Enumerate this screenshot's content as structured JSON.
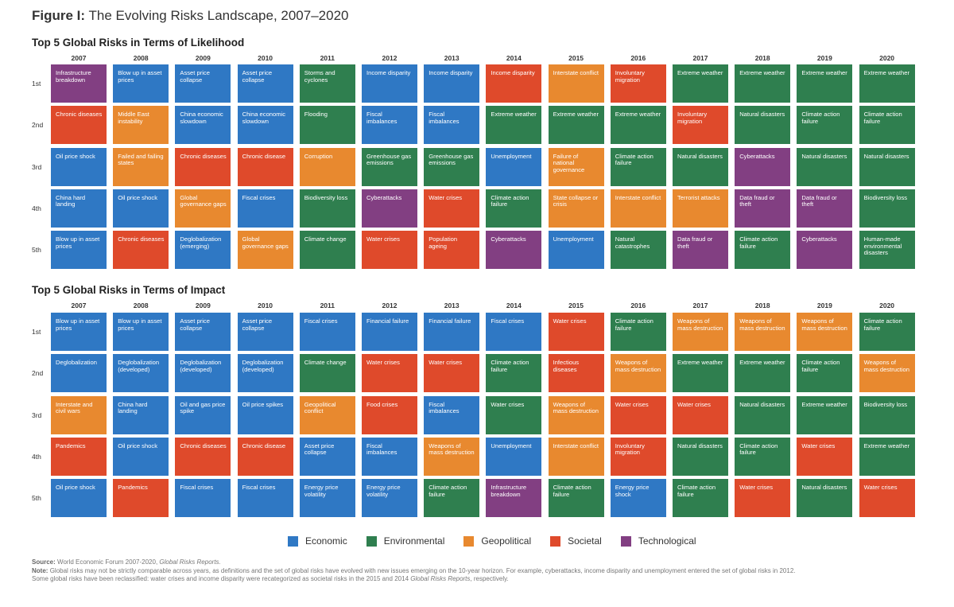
{
  "figure_title_lead": "Figure I:",
  "figure_title_rest": "The Evolving Risks Landscape, 2007–2020",
  "categories_colors": {
    "Economic": "#2f78c4",
    "Environmental": "#2f7f4f",
    "Geopolitical": "#e8892f",
    "Societal": "#df4a2b",
    "Technological": "#823f82"
  },
  "chart_data": [
    {
      "type": "table",
      "title": "Top 5 Global Risks in Terms of Likelihood",
      "years": [
        "2007",
        "2008",
        "2009",
        "2010",
        "2011",
        "2012",
        "2013",
        "2014",
        "2015",
        "2016",
        "2017",
        "2018",
        "2019",
        "2020"
      ],
      "ranks": [
        "1st",
        "2nd",
        "3rd",
        "4th",
        "5th"
      ],
      "cells": [
        [
          [
            "Infrastructure breakdown",
            "Technological"
          ],
          [
            "Blow up in asset prices",
            "Economic"
          ],
          [
            "Asset price collapse",
            "Economic"
          ],
          [
            "Asset price collapse",
            "Economic"
          ],
          [
            "Storms and cyclones",
            "Environmental"
          ],
          [
            "Income disparity",
            "Economic"
          ],
          [
            "Income disparity",
            "Economic"
          ],
          [
            "Income disparity",
            "Societal"
          ],
          [
            "Interstate conflict",
            "Geopolitical"
          ],
          [
            "Involuntary migration",
            "Societal"
          ],
          [
            "Extreme weather",
            "Environmental"
          ],
          [
            "Extreme weather",
            "Environmental"
          ],
          [
            "Extreme weather",
            "Environmental"
          ],
          [
            "Extreme weather",
            "Environmental"
          ]
        ],
        [
          [
            "Chronic diseases",
            "Societal"
          ],
          [
            "Middle East instability",
            "Geopolitical"
          ],
          [
            "China economic slowdown",
            "Economic"
          ],
          [
            "China economic slowdown",
            "Economic"
          ],
          [
            "Flooding",
            "Environmental"
          ],
          [
            "Fiscal imbalances",
            "Economic"
          ],
          [
            "Fiscal imbalances",
            "Economic"
          ],
          [
            "Extreme weather",
            "Environmental"
          ],
          [
            "Extreme weather",
            "Environmental"
          ],
          [
            "Extreme weather",
            "Environmental"
          ],
          [
            "Involuntary migration",
            "Societal"
          ],
          [
            "Natural disasters",
            "Environmental"
          ],
          [
            "Climate action failure",
            "Environmental"
          ],
          [
            "Climate action failure",
            "Environmental"
          ]
        ],
        [
          [
            "Oil price shock",
            "Economic"
          ],
          [
            "Failed and failing states",
            "Geopolitical"
          ],
          [
            "Chronic diseases",
            "Societal"
          ],
          [
            "Chronic disease",
            "Societal"
          ],
          [
            "Corruption",
            "Geopolitical"
          ],
          [
            "Greenhouse gas emissions",
            "Environmental"
          ],
          [
            "Greenhouse gas emissions",
            "Environmental"
          ],
          [
            "Unemployment",
            "Economic"
          ],
          [
            "Failure of national governance",
            "Geopolitical"
          ],
          [
            "Climate action failure",
            "Environmental"
          ],
          [
            "Natural disasters",
            "Environmental"
          ],
          [
            "Cyberattacks",
            "Technological"
          ],
          [
            "Natural disasters",
            "Environmental"
          ],
          [
            "Natural disasters",
            "Environmental"
          ]
        ],
        [
          [
            "China hard landing",
            "Economic"
          ],
          [
            "Oil price shock",
            "Economic"
          ],
          [
            "Global governance gaps",
            "Geopolitical"
          ],
          [
            "Fiscal crises",
            "Economic"
          ],
          [
            "Biodiversity loss",
            "Environmental"
          ],
          [
            "Cyberattacks",
            "Technological"
          ],
          [
            "Water crises",
            "Societal"
          ],
          [
            "Climate action failure",
            "Environmental"
          ],
          [
            "State collapse or crisis",
            "Geopolitical"
          ],
          [
            "Interstate conflict",
            "Geopolitical"
          ],
          [
            "Terrorist attacks",
            "Geopolitical"
          ],
          [
            "Data fraud or theft",
            "Technological"
          ],
          [
            "Data fraud or theft",
            "Technological"
          ],
          [
            "Biodiversity loss",
            "Environmental"
          ]
        ],
        [
          [
            "Blow up in asset prices",
            "Economic"
          ],
          [
            "Chronic diseases",
            "Societal"
          ],
          [
            "Deglobalization (emerging)",
            "Economic"
          ],
          [
            "Global governance gaps",
            "Geopolitical"
          ],
          [
            "Climate change",
            "Environmental"
          ],
          [
            "Water crises",
            "Societal"
          ],
          [
            "Population ageing",
            "Societal"
          ],
          [
            "Cyberattacks",
            "Technological"
          ],
          [
            "Unemployment",
            "Economic"
          ],
          [
            "Natural catastrophes",
            "Environmental"
          ],
          [
            "Data fraud or theft",
            "Technological"
          ],
          [
            "Climate action failure",
            "Environmental"
          ],
          [
            "Cyberattacks",
            "Technological"
          ],
          [
            "Human-made environmental disasters",
            "Environmental"
          ]
        ]
      ]
    },
    {
      "type": "table",
      "title": "Top 5 Global Risks in Terms of Impact",
      "years": [
        "2007",
        "2008",
        "2009",
        "2010",
        "2011",
        "2012",
        "2013",
        "2014",
        "2015",
        "2016",
        "2017",
        "2018",
        "2019",
        "2020"
      ],
      "ranks": [
        "1st",
        "2nd",
        "3rd",
        "4th",
        "5th"
      ],
      "cells": [
        [
          [
            "Blow up in asset prices",
            "Economic"
          ],
          [
            "Blow up in asset prices",
            "Economic"
          ],
          [
            "Asset price collapse",
            "Economic"
          ],
          [
            "Asset price collapse",
            "Economic"
          ],
          [
            "Fiscal crises",
            "Economic"
          ],
          [
            "Financial failure",
            "Economic"
          ],
          [
            "Financial failure",
            "Economic"
          ],
          [
            "Fiscal crises",
            "Economic"
          ],
          [
            "Water crises",
            "Societal"
          ],
          [
            "Climate action failure",
            "Environmental"
          ],
          [
            "Weapons of mass destruction",
            "Geopolitical"
          ],
          [
            "Weapons of mass destruction",
            "Geopolitical"
          ],
          [
            "Weapons of mass destruction",
            "Geopolitical"
          ],
          [
            "Climate action failure",
            "Environmental"
          ]
        ],
        [
          [
            "Deglobalization",
            "Economic"
          ],
          [
            "Deglobalization (developed)",
            "Economic"
          ],
          [
            "Deglobalization (developed)",
            "Economic"
          ],
          [
            "Deglobalization (developed)",
            "Economic"
          ],
          [
            "Climate change",
            "Environmental"
          ],
          [
            "Water crises",
            "Societal"
          ],
          [
            "Water crises",
            "Societal"
          ],
          [
            "Climate action failure",
            "Environmental"
          ],
          [
            "Infectious diseases",
            "Societal"
          ],
          [
            "Weapons of mass destruction",
            "Geopolitical"
          ],
          [
            "Extreme weather",
            "Environmental"
          ],
          [
            "Extreme weather",
            "Environmental"
          ],
          [
            "Climate action failure",
            "Environmental"
          ],
          [
            "Weapons of mass destruction",
            "Geopolitical"
          ]
        ],
        [
          [
            "Interstate and civil wars",
            "Geopolitical"
          ],
          [
            "China hard landing",
            "Economic"
          ],
          [
            "Oil and gas price spike",
            "Economic"
          ],
          [
            "Oil price spikes",
            "Economic"
          ],
          [
            "Geopolitical conflict",
            "Geopolitical"
          ],
          [
            "Food crises",
            "Societal"
          ],
          [
            "Fiscal imbalances",
            "Economic"
          ],
          [
            "Water crises",
            "Environmental"
          ],
          [
            "Weapons of mass destruction",
            "Geopolitical"
          ],
          [
            "Water crises",
            "Societal"
          ],
          [
            "Water crises",
            "Societal"
          ],
          [
            "Natural disasters",
            "Environmental"
          ],
          [
            "Extreme weather",
            "Environmental"
          ],
          [
            "Biodiversity loss",
            "Environmental"
          ]
        ],
        [
          [
            "Pandemics",
            "Societal"
          ],
          [
            "Oil price shock",
            "Economic"
          ],
          [
            "Chronic diseases",
            "Societal"
          ],
          [
            "Chronic disease",
            "Societal"
          ],
          [
            "Asset price collapse",
            "Economic"
          ],
          [
            "Fiscal imbalances",
            "Economic"
          ],
          [
            "Weapons of mass destruction",
            "Geopolitical"
          ],
          [
            "Unemployment",
            "Economic"
          ],
          [
            "Interstate conflict",
            "Geopolitical"
          ],
          [
            "Involuntary migration",
            "Societal"
          ],
          [
            "Natural disasters",
            "Environmental"
          ],
          [
            "Climate action failure",
            "Environmental"
          ],
          [
            "Water crises",
            "Societal"
          ],
          [
            "Extreme weather",
            "Environmental"
          ]
        ],
        [
          [
            "Oil price shock",
            "Economic"
          ],
          [
            "Pandemics",
            "Societal"
          ],
          [
            "Fiscal crises",
            "Economic"
          ],
          [
            "Fiscal crises",
            "Economic"
          ],
          [
            "Energy price volatility",
            "Economic"
          ],
          [
            "Energy price volatility",
            "Economic"
          ],
          [
            "Climate action failure",
            "Environmental"
          ],
          [
            "Infrastructure breakdown",
            "Technological"
          ],
          [
            "Climate action failure",
            "Environmental"
          ],
          [
            "Energy price shock",
            "Economic"
          ],
          [
            "Climate action failure",
            "Environmental"
          ],
          [
            "Water crises",
            "Societal"
          ],
          [
            "Natural disasters",
            "Environmental"
          ],
          [
            "Water crises",
            "Societal"
          ]
        ]
      ]
    }
  ],
  "legend": [
    "Economic",
    "Environmental",
    "Geopolitical",
    "Societal",
    "Technological"
  ],
  "footer": {
    "source_label": "Source:",
    "source_text": "World Economic Forum 2007-2020,",
    "source_italic": "Global Risks Reports.",
    "note_label": "Note:",
    "note_text": "Global risks may not be strictly comparable across years, as definitions and the set of global risks have evolved with new issues emerging on the 10-year horizon. For example, cyberattacks, income disparity and unemployment entered the set of global risks in 2012.",
    "note_text2": "Some global risks have been reclassified: water crises and income disparity were recategorized as societal risks in the 2015 and 2014",
    "note_italic2": "Global Risks Reports",
    "note_end": ", respectively."
  }
}
